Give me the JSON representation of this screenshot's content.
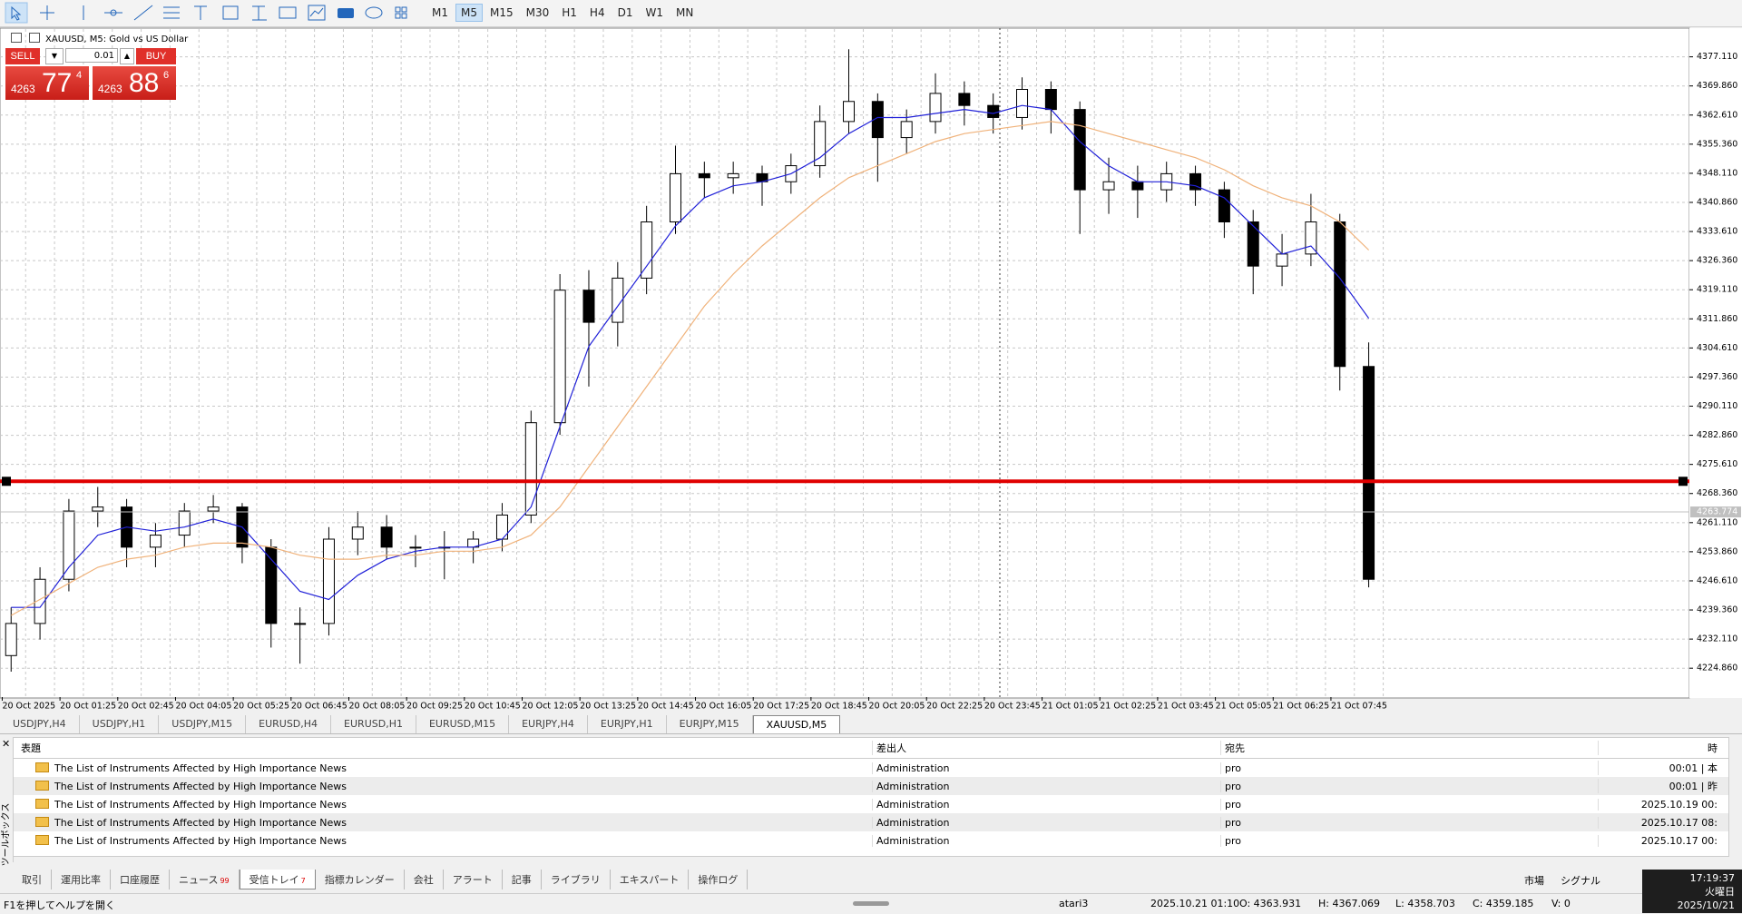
{
  "toolbar": {
    "timeframes": [
      "M1",
      "M5",
      "M15",
      "M30",
      "H1",
      "H4",
      "D1",
      "W1",
      "MN"
    ]
  },
  "trade_panel": {
    "sell": "SELL",
    "buy": "BUY",
    "lot": "0.01",
    "sell_price": {
      "big": "4263",
      "main": "77",
      "small": "4"
    },
    "buy_price": {
      "big": "4263",
      "main": "88",
      "small": "6"
    }
  },
  "chart_data": {
    "type": "candlestick",
    "title": "XAUUSD, M5:  Gold vs US Dollar",
    "categories": [
      "20 Oct 2025",
      "20 Oct 01:25",
      "20 Oct 02:45",
      "20 Oct 04:05",
      "20 Oct 05:25",
      "20 Oct 06:45",
      "20 Oct 08:05",
      "20 Oct 09:25",
      "20 Oct 10:45",
      "20 Oct 12:05",
      "20 Oct 13:25",
      "20 Oct 14:45",
      "20 Oct 16:05",
      "20 Oct 17:25",
      "20 Oct 18:45",
      "20 Oct 20:05",
      "20 Oct 22:25",
      "20 Oct 23:45",
      "21 Oct 01:05",
      "21 Oct 02:25",
      "21 Oct 03:45",
      "21 Oct 05:05",
      "21 Oct 06:25",
      "21 Oct 07:45"
    ],
    "ohlc": [
      [
        4228,
        4240,
        4224,
        4236
      ],
      [
        4236,
        4250,
        4232,
        4247
      ],
      [
        4247,
        4267,
        4244,
        4264
      ],
      [
        4264,
        4270,
        4260,
        4265
      ],
      [
        4265,
        4267,
        4250,
        4255
      ],
      [
        4255,
        4261,
        4250,
        4258
      ],
      [
        4258,
        4266,
        4255,
        4264
      ],
      [
        4264,
        4268,
        4261,
        4265
      ],
      [
        4265,
        4266,
        4251,
        4255
      ],
      [
        4255,
        4257,
        4230,
        4236
      ],
      [
        4236,
        4240,
        4226,
        4236
      ],
      [
        4236,
        4260,
        4233,
        4257
      ],
      [
        4257,
        4264,
        4253,
        4260
      ],
      [
        4260,
        4263,
        4252,
        4255
      ],
      [
        4255,
        4258,
        4250,
        4255
      ],
      [
        4255,
        4259,
        4247,
        4255
      ],
      [
        4255,
        4259,
        4251,
        4257
      ],
      [
        4257,
        4266,
        4254,
        4263
      ],
      [
        4263,
        4289,
        4261,
        4286
      ],
      [
        4286,
        4323,
        4283,
        4319
      ],
      [
        4319,
        4324,
        4295,
        4311
      ],
      [
        4311,
        4326,
        4305,
        4322
      ],
      [
        4322,
        4340,
        4318,
        4336
      ],
      [
        4336,
        4355,
        4333,
        4348
      ],
      [
        4348,
        4351,
        4342,
        4347
      ],
      [
        4347,
        4351,
        4343,
        4348
      ],
      [
        4348,
        4350,
        4340,
        4346
      ],
      [
        4346,
        4353,
        4343,
        4350
      ],
      [
        4350,
        4365,
        4347,
        4361
      ],
      [
        4361,
        4379,
        4358,
        4366
      ],
      [
        4366,
        4368,
        4346,
        4357
      ],
      [
        4357,
        4364,
        4353,
        4361
      ],
      [
        4361,
        4373,
        4358,
        4368
      ],
      [
        4368,
        4371,
        4360,
        4365
      ],
      [
        4365,
        4368,
        4358,
        4362
      ],
      [
        4362,
        4372,
        4359,
        4369
      ],
      [
        4369,
        4371,
        4358,
        4364
      ],
      [
        4364,
        4366,
        4333,
        4344
      ],
      [
        4344,
        4352,
        4338,
        4346
      ],
      [
        4346,
        4350,
        4337,
        4344
      ],
      [
        4344,
        4351,
        4341,
        4348
      ],
      [
        4348,
        4350,
        4340,
        4344
      ],
      [
        4344,
        4346,
        4332,
        4336
      ],
      [
        4336,
        4339,
        4318,
        4325
      ],
      [
        4325,
        4333,
        4320,
        4328
      ],
      [
        4328,
        4343,
        4325,
        4336
      ],
      [
        4336,
        4338,
        4294,
        4300
      ],
      [
        4300,
        4306,
        4245,
        4247
      ]
    ],
    "indicators": [
      {
        "color": "#2020d8",
        "values": [
          4240,
          4240,
          4250,
          4258,
          4260,
          4259,
          4260,
          4262,
          4260,
          4252,
          4244,
          4242,
          4248,
          4252,
          4254,
          4255,
          4255,
          4257,
          4265,
          4285,
          4305,
          4315,
          4325,
          4335,
          4342,
          4345,
          4346,
          4348,
          4352,
          4358,
          4362,
          4362,
          4363,
          4364,
          4363,
          4365,
          4364,
          4356,
          4350,
          4346,
          4346,
          4345,
          4342,
          4335,
          4328,
          4330,
          4322,
          4312
        ]
      },
      {
        "color": "#f0b27a",
        "values": [
          4238,
          4242,
          4246,
          4250,
          4252,
          4253,
          4255,
          4256,
          4256,
          4255,
          4253,
          4252,
          4252,
          4253,
          4253,
          4254,
          4254,
          4255,
          4258,
          4265,
          4275,
          4285,
          4295,
          4305,
          4315,
          4323,
          4330,
          4336,
          4342,
          4347,
          4350,
          4353,
          4356,
          4358,
          4359,
          4360,
          4361,
          4360,
          4358,
          4356,
          4354,
          4352,
          4349,
          4345,
          4342,
          4340,
          4336,
          4329
        ]
      }
    ],
    "ylim": [
      4217.67,
      4384.03
    ],
    "yticks": [
      {
        "value": 4377.11,
        "label": "4377.110"
      },
      {
        "value": 4369.86,
        "label": "4369.860"
      },
      {
        "value": 4362.61,
        "label": "4362.610"
      },
      {
        "value": 4355.36,
        "label": "4355.360"
      },
      {
        "value": 4348.11,
        "label": "4348.110"
      },
      {
        "value": 4340.86,
        "label": "4340.860"
      },
      {
        "value": 4333.61,
        "label": "4333.610"
      },
      {
        "value": 4326.36,
        "label": "4326.360"
      },
      {
        "value": 4319.11,
        "label": "4319.110"
      },
      {
        "value": 4311.86,
        "label": "4311.860"
      },
      {
        "value": 4304.61,
        "label": "4304.610"
      },
      {
        "value": 4297.36,
        "label": "4297.360"
      },
      {
        "value": 4290.11,
        "label": "4290.110"
      },
      {
        "value": 4282.86,
        "label": "4282.860"
      },
      {
        "value": 4275.61,
        "label": "4275.610"
      },
      {
        "value": 4268.36,
        "label": "4268.360"
      },
      {
        "value": 4261.11,
        "label": "4261.110"
      },
      {
        "value": 4253.86,
        "label": "4253.860"
      },
      {
        "value": 4246.61,
        "label": "4246.610"
      },
      {
        "value": 4239.36,
        "label": "4239.360"
      },
      {
        "value": 4232.11,
        "label": "4232.110"
      },
      {
        "value": 4224.86,
        "label": "4224.860"
      }
    ],
    "current_price": {
      "value": 4263.774,
      "label": "4263.774"
    },
    "hline": {
      "value": 4271.4,
      "color": "#e00000"
    },
    "grid": true
  },
  "symbol_tabs": [
    "USDJPY,H4",
    "USDJPY,H1",
    "USDJPY,M15",
    "EURUSD,H4",
    "EURUSD,H1",
    "EURUSD,M15",
    "EURJPY,H4",
    "EURJPY,H1",
    "EURJPY,M15",
    "XAUUSD,M5"
  ],
  "mailbox": {
    "side_label": "ツールボックス",
    "columns": [
      "表題",
      "差出人",
      "宛先",
      "時"
    ],
    "rows": [
      [
        "The List of Instruments Affected by High Importance News",
        "Administration",
        "pro",
        "00:01 | 本"
      ],
      [
        "The List of Instruments Affected by High Importance News",
        "Administration",
        "pro",
        "00:01 | 昨"
      ],
      [
        "The List of Instruments Affected by High Importance News",
        "Administration",
        "pro",
        "2025.10.19 00:"
      ],
      [
        "The List of Instruments Affected by High Importance News",
        "Administration",
        "pro",
        "2025.10.17 08:"
      ],
      [
        "The List of Instruments Affected by High Importance News",
        "Administration",
        "pro",
        "2025.10.17 00:"
      ]
    ]
  },
  "bottom_tabs": [
    {
      "label": "取引"
    },
    {
      "label": "運用比率"
    },
    {
      "label": "口座履歴"
    },
    {
      "label": "ニュース",
      "badge": 99
    },
    {
      "label": "受信トレイ",
      "badge": 7
    },
    {
      "label": "指標カレンダー"
    },
    {
      "label": "会社"
    },
    {
      "label": "アラート"
    },
    {
      "label": "記事"
    },
    {
      "label": "ライブラリ"
    },
    {
      "label": "エキスパート"
    },
    {
      "label": "操作ログ"
    }
  ],
  "right_links": [
    "市場",
    "シグナル"
  ],
  "clock": {
    "time": "17:19:37",
    "weekday": "火曜日",
    "date": "2025/10/21"
  },
  "status": {
    "help": "F1を押してヘルプを開く",
    "profile": "atari3",
    "datetime": "2025.10.21 01:10",
    "open": "O: 4363.931",
    "high": "H: 4367.069",
    "low": "L: 4358.703",
    "close": "C: 4359.185",
    "volume": "V: 0"
  }
}
